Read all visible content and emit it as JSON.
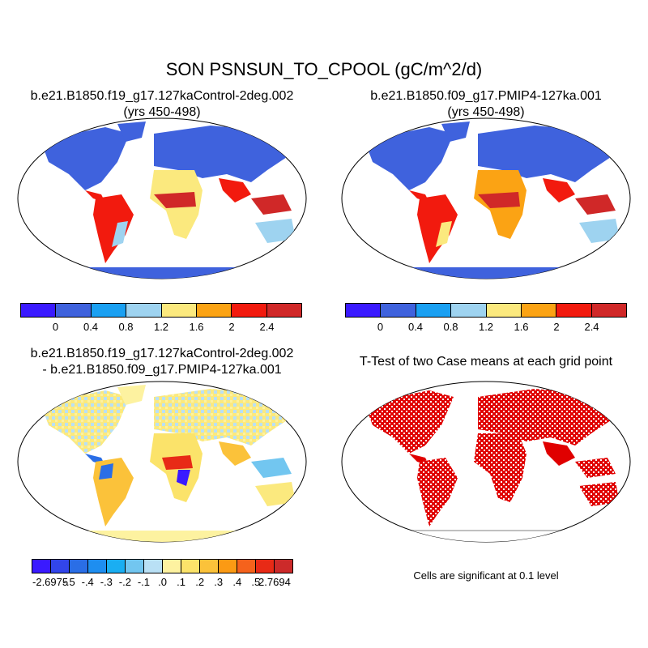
{
  "title": "SON PSNSUN_TO_CPOOL (gC/m^2/d)",
  "panels": [
    {
      "line1": "b.e21.B1850.f19_g17.127kaControl-2deg.002",
      "line2": "(yrs 450-498)"
    },
    {
      "line1": "b.e21.B1850.f09_g17.PMIP4-127ka.001",
      "line2": "(yrs 450-498)"
    },
    {
      "line1": "b.e21.B1850.f19_g17.127kaControl-2deg.002",
      "line2": "- b.e21.B1850.f09_g17.PMIP4-127ka.001"
    },
    {
      "line1": "T-Test of two Case means at each grid point",
      "line2": ""
    }
  ],
  "colorbar_abs": {
    "colors": [
      "#3a1aff",
      "#3f62dd",
      "#1aa0f2",
      "#9ed3f0",
      "#fbe97e",
      "#fba314",
      "#f21a0e",
      "#d02828"
    ],
    "labels": [
      "0",
      "0.4",
      "0.8",
      "1.2",
      "1.6",
      "2",
      "2.4"
    ]
  },
  "colorbar_diff": {
    "colors": [
      "#3a1aff",
      "#3245ea",
      "#2a6ee6",
      "#1e8ef0",
      "#1aaef2",
      "#72c6f0",
      "#b9e0f5",
      "#fdf2a0",
      "#fbe36a",
      "#fbc23a",
      "#fb9a14",
      "#f5621c",
      "#e82a16",
      "#cc2a2a"
    ],
    "labels": [
      "-2.6975",
      "-.5",
      "-.4",
      "-.3",
      "-.2",
      "-.1",
      ".0",
      ".1",
      ".2",
      ".3",
      ".4",
      ".5",
      "2.7694"
    ]
  },
  "significance_color": "#e00000",
  "note": "Cells are significant at 0.1 level"
}
